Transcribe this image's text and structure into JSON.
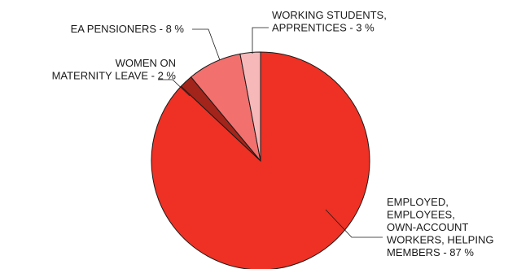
{
  "chart_data": {
    "type": "pie",
    "title": "",
    "start_angle_deg": 0,
    "direction": "clockwise",
    "slices": [
      {
        "label_lines": [
          "EMPLOYED,",
          "EMPLOYEES,",
          "OWN-ACCOUNT",
          "WORKERS, HELPING",
          "MEMBERS - 87 %"
        ],
        "value": 87,
        "color": "#ee3124"
      },
      {
        "label_lines": [
          "WOMEN ON",
          "MATERNITY LEAVE - 2 %"
        ],
        "value": 2,
        "color": "#a3241a"
      },
      {
        "label_lines": [
          "EA PENSIONERS - 8 %"
        ],
        "value": 8,
        "color": "#f2706d"
      },
      {
        "label_lines": [
          "WORKING STUDENTS,",
          "APPRENTICES - 3 %"
        ],
        "value": 3,
        "color": "#f6b8b9"
      }
    ]
  }
}
